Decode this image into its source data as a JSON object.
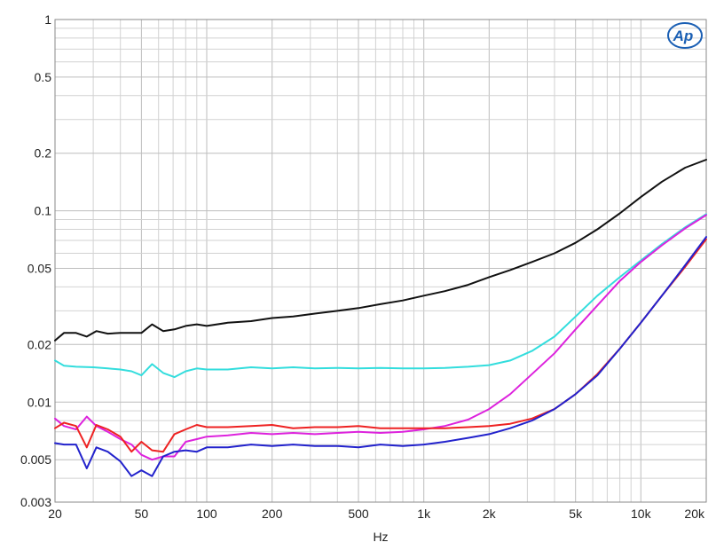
{
  "chart_data": {
    "type": "line",
    "title": "",
    "xlabel": "Hz",
    "ylabel": "",
    "x_scale": "log",
    "y_scale": "log",
    "xlim": [
      20,
      20000
    ],
    "ylim": [
      0.003,
      1
    ],
    "grid": true,
    "legend": "none",
    "x_ticks": [
      {
        "value": 20,
        "label": "20"
      },
      {
        "value": 50,
        "label": "50"
      },
      {
        "value": 100,
        "label": "100"
      },
      {
        "value": 200,
        "label": "200"
      },
      {
        "value": 500,
        "label": "500"
      },
      {
        "value": 1000,
        "label": "1k"
      },
      {
        "value": 2000,
        "label": "2k"
      },
      {
        "value": 5000,
        "label": "5k"
      },
      {
        "value": 10000,
        "label": "10k"
      },
      {
        "value": 20000,
        "label": "20k"
      }
    ],
    "y_ticks": [
      {
        "value": 1,
        "label": "1"
      },
      {
        "value": 0.5,
        "label": "0.5"
      },
      {
        "value": 0.2,
        "label": "0.2"
      },
      {
        "value": 0.1,
        "label": "0.1"
      },
      {
        "value": 0.05,
        "label": "0.05"
      },
      {
        "value": 0.02,
        "label": "0.02"
      },
      {
        "value": 0.01,
        "label": "0.01"
      },
      {
        "value": 0.005,
        "label": "0.005"
      },
      {
        "value": 0.003,
        "label": "0.003"
      }
    ],
    "series": [
      {
        "color": "#111111",
        "points": [
          [
            20,
            0.021
          ],
          [
            22,
            0.023
          ],
          [
            25,
            0.023
          ],
          [
            28,
            0.022
          ],
          [
            31,
            0.0235
          ],
          [
            35,
            0.0228
          ],
          [
            40,
            0.023
          ],
          [
            45,
            0.023
          ],
          [
            50,
            0.023
          ],
          [
            56,
            0.0255
          ],
          [
            63,
            0.0235
          ],
          [
            71,
            0.024
          ],
          [
            80,
            0.025
          ],
          [
            90,
            0.0255
          ],
          [
            100,
            0.025
          ],
          [
            125,
            0.026
          ],
          [
            160,
            0.0265
          ],
          [
            200,
            0.0275
          ],
          [
            250,
            0.028
          ],
          [
            315,
            0.029
          ],
          [
            400,
            0.03
          ],
          [
            500,
            0.031
          ],
          [
            630,
            0.0325
          ],
          [
            800,
            0.034
          ],
          [
            1000,
            0.036
          ],
          [
            1250,
            0.038
          ],
          [
            1600,
            0.041
          ],
          [
            2000,
            0.045
          ],
          [
            2500,
            0.049
          ],
          [
            3150,
            0.054
          ],
          [
            4000,
            0.06
          ],
          [
            5000,
            0.068
          ],
          [
            6300,
            0.08
          ],
          [
            8000,
            0.097
          ],
          [
            10000,
            0.118
          ],
          [
            12500,
            0.142
          ],
          [
            16000,
            0.168
          ],
          [
            20000,
            0.185
          ]
        ]
      },
      {
        "color": "#33dddd",
        "points": [
          [
            20,
            0.0165
          ],
          [
            22,
            0.0155
          ],
          [
            25,
            0.0153
          ],
          [
            30,
            0.0152
          ],
          [
            35,
            0.015
          ],
          [
            40,
            0.0148
          ],
          [
            45,
            0.0145
          ],
          [
            50,
            0.0138
          ],
          [
            56,
            0.0158
          ],
          [
            63,
            0.0142
          ],
          [
            71,
            0.0135
          ],
          [
            80,
            0.0145
          ],
          [
            90,
            0.015
          ],
          [
            100,
            0.0148
          ],
          [
            125,
            0.0148
          ],
          [
            160,
            0.0152
          ],
          [
            200,
            0.015
          ],
          [
            250,
            0.0152
          ],
          [
            315,
            0.015
          ],
          [
            400,
            0.0151
          ],
          [
            500,
            0.015
          ],
          [
            630,
            0.0151
          ],
          [
            800,
            0.015
          ],
          [
            1000,
            0.015
          ],
          [
            1250,
            0.0151
          ],
          [
            1600,
            0.0153
          ],
          [
            2000,
            0.0156
          ],
          [
            2500,
            0.0165
          ],
          [
            3150,
            0.0185
          ],
          [
            4000,
            0.022
          ],
          [
            5000,
            0.028
          ],
          [
            6300,
            0.036
          ],
          [
            8000,
            0.045
          ],
          [
            10000,
            0.055
          ],
          [
            12500,
            0.067
          ],
          [
            16000,
            0.082
          ],
          [
            20000,
            0.096
          ]
        ]
      },
      {
        "color": "#dd22dd",
        "points": [
          [
            20,
            0.0082
          ],
          [
            22,
            0.0075
          ],
          [
            25,
            0.0072
          ],
          [
            28,
            0.0084
          ],
          [
            31,
            0.0075
          ],
          [
            35,
            0.007
          ],
          [
            40,
            0.0064
          ],
          [
            45,
            0.006
          ],
          [
            50,
            0.0053
          ],
          [
            56,
            0.005
          ],
          [
            63,
            0.0052
          ],
          [
            71,
            0.0052
          ],
          [
            80,
            0.0062
          ],
          [
            90,
            0.0064
          ],
          [
            100,
            0.0066
          ],
          [
            125,
            0.0067
          ],
          [
            160,
            0.0069
          ],
          [
            200,
            0.0068
          ],
          [
            250,
            0.0069
          ],
          [
            315,
            0.0068
          ],
          [
            400,
            0.0069
          ],
          [
            500,
            0.007
          ],
          [
            630,
            0.0069
          ],
          [
            800,
            0.007
          ],
          [
            1000,
            0.0072
          ],
          [
            1250,
            0.0075
          ],
          [
            1600,
            0.0081
          ],
          [
            2000,
            0.0092
          ],
          [
            2500,
            0.011
          ],
          [
            3150,
            0.014
          ],
          [
            4000,
            0.018
          ],
          [
            5000,
            0.024
          ],
          [
            6300,
            0.032
          ],
          [
            8000,
            0.043
          ],
          [
            10000,
            0.054
          ],
          [
            12500,
            0.066
          ],
          [
            16000,
            0.081
          ],
          [
            20000,
            0.095
          ]
        ]
      },
      {
        "color": "#ee2222",
        "points": [
          [
            20,
            0.0073
          ],
          [
            22,
            0.0078
          ],
          [
            25,
            0.0075
          ],
          [
            28,
            0.0058
          ],
          [
            31,
            0.0076
          ],
          [
            35,
            0.0072
          ],
          [
            40,
            0.0066
          ],
          [
            45,
            0.0055
          ],
          [
            50,
            0.0062
          ],
          [
            56,
            0.0056
          ],
          [
            63,
            0.0055
          ],
          [
            71,
            0.0068
          ],
          [
            80,
            0.0072
          ],
          [
            90,
            0.0076
          ],
          [
            100,
            0.0074
          ],
          [
            125,
            0.0074
          ],
          [
            160,
            0.0075
          ],
          [
            200,
            0.0076
          ],
          [
            250,
            0.0073
          ],
          [
            315,
            0.0074
          ],
          [
            400,
            0.0074
          ],
          [
            500,
            0.0075
          ],
          [
            630,
            0.0073
          ],
          [
            800,
            0.0073
          ],
          [
            1000,
            0.0073
          ],
          [
            1250,
            0.0073
          ],
          [
            1600,
            0.0074
          ],
          [
            2000,
            0.0075
          ],
          [
            2500,
            0.0077
          ],
          [
            3150,
            0.0082
          ],
          [
            4000,
            0.0092
          ],
          [
            5000,
            0.011
          ],
          [
            6300,
            0.014
          ],
          [
            8000,
            0.019
          ],
          [
            10000,
            0.026
          ],
          [
            12500,
            0.036
          ],
          [
            16000,
            0.051
          ],
          [
            20000,
            0.071
          ]
        ]
      },
      {
        "color": "#2222cc",
        "points": [
          [
            20,
            0.0061
          ],
          [
            22,
            0.006
          ],
          [
            25,
            0.006
          ],
          [
            28,
            0.0045
          ],
          [
            31,
            0.0058
          ],
          [
            35,
            0.0055
          ],
          [
            40,
            0.0049
          ],
          [
            45,
            0.0041
          ],
          [
            50,
            0.0044
          ],
          [
            56,
            0.0041
          ],
          [
            63,
            0.0052
          ],
          [
            71,
            0.0055
          ],
          [
            80,
            0.0056
          ],
          [
            90,
            0.0055
          ],
          [
            100,
            0.0058
          ],
          [
            125,
            0.0058
          ],
          [
            160,
            0.006
          ],
          [
            200,
            0.0059
          ],
          [
            250,
            0.006
          ],
          [
            315,
            0.0059
          ],
          [
            400,
            0.0059
          ],
          [
            500,
            0.0058
          ],
          [
            630,
            0.006
          ],
          [
            800,
            0.0059
          ],
          [
            1000,
            0.006
          ],
          [
            1250,
            0.0062
          ],
          [
            1600,
            0.0065
          ],
          [
            2000,
            0.0068
          ],
          [
            2500,
            0.0073
          ],
          [
            3150,
            0.008
          ],
          [
            4000,
            0.0092
          ],
          [
            5000,
            0.011
          ],
          [
            6300,
            0.0138
          ],
          [
            8000,
            0.019
          ],
          [
            10000,
            0.026
          ],
          [
            12500,
            0.036
          ],
          [
            16000,
            0.052
          ],
          [
            20000,
            0.073
          ]
        ]
      }
    ]
  },
  "logo": {
    "text": "Ap",
    "color": "#1a5fb4"
  }
}
